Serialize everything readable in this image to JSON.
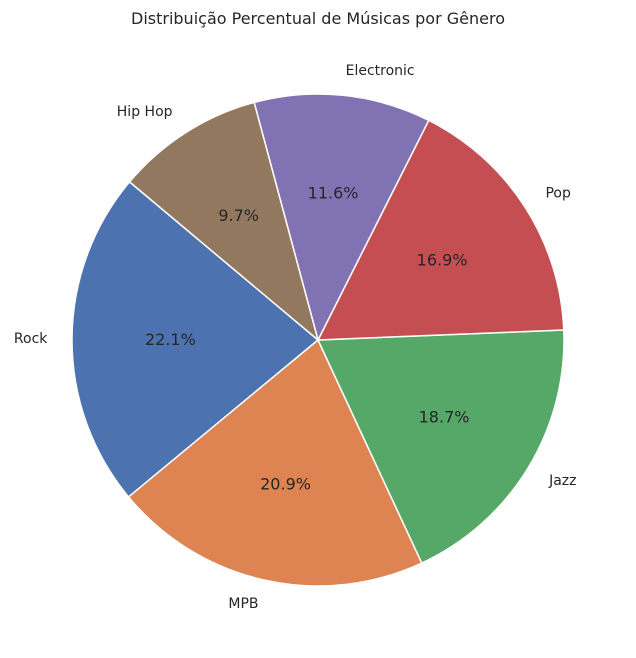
{
  "chart_data": {
    "type": "pie",
    "title": "Distribuição Percentual de Músicas por Gênero",
    "start_angle_deg": 140,
    "direction": "counterclockwise",
    "slices": [
      {
        "label": "Rock",
        "value": 22.1,
        "pct_label": "22.1%",
        "color": "#4c72b0"
      },
      {
        "label": "MPB",
        "value": 20.9,
        "pct_label": "20.9%",
        "color": "#dd8452"
      },
      {
        "label": "Jazz",
        "value": 18.7,
        "pct_label": "18.7%",
        "color": "#55a868"
      },
      {
        "label": "Pop",
        "value": 16.9,
        "pct_label": "16.9%",
        "color": "#c44e52"
      },
      {
        "label": "Electronic",
        "value": 11.6,
        "pct_label": "11.6%",
        "color": "#8172b3"
      },
      {
        "label": "Hip Hop",
        "value": 9.7,
        "pct_label": "9.7%",
        "color": "#937860"
      }
    ]
  }
}
